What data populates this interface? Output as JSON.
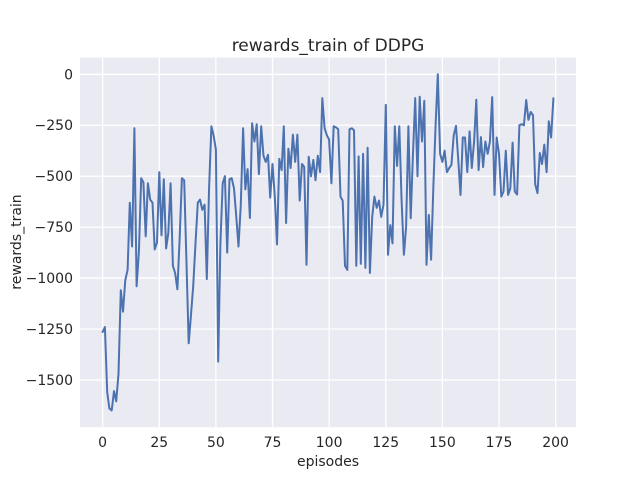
{
  "figure": {
    "background": "#ffffff",
    "axes_background": "#eaeaf2",
    "grid_color": "#ffffff",
    "text_color": "#262626"
  },
  "chart_data": {
    "type": "line",
    "title": "rewards_train of DDPG",
    "xlabel": "episodes",
    "ylabel": "rewards_train",
    "grid": true,
    "legend": false,
    "x_ticks": [
      0,
      25,
      50,
      75,
      100,
      125,
      150,
      175,
      200
    ],
    "y_ticks": [
      0,
      -250,
      -500,
      -750,
      -1000,
      -1250,
      -1500
    ],
    "xlim": [
      -10,
      209
    ],
    "ylim": [
      -1732,
      82
    ],
    "series": [
      {
        "name": "rewards_train",
        "color": "#4c72b0",
        "x_mode": "index",
        "values": [
          -1265,
          -1240,
          -1560,
          -1640,
          -1650,
          -1555,
          -1605,
          -1470,
          -1060,
          -1165,
          -1010,
          -960,
          -630,
          -845,
          -265,
          -1040,
          -870,
          -510,
          -530,
          -795,
          -535,
          -615,
          -630,
          -860,
          -825,
          -480,
          -790,
          -515,
          -855,
          -780,
          -535,
          -940,
          -975,
          -1055,
          -800,
          -510,
          -520,
          -910,
          -1320,
          -1180,
          -1040,
          -830,
          -630,
          -615,
          -665,
          -640,
          -1005,
          -555,
          -255,
          -300,
          -370,
          -1410,
          -830,
          -535,
          -500,
          -875,
          -515,
          -510,
          -560,
          -700,
          -845,
          -640,
          -265,
          -565,
          -465,
          -705,
          -240,
          -330,
          -245,
          -490,
          -255,
          -400,
          -430,
          -395,
          -605,
          -440,
          -600,
          -835,
          -415,
          -470,
          -255,
          -730,
          -365,
          -460,
          -296,
          -430,
          -296,
          -620,
          -440,
          -455,
          -935,
          -405,
          -500,
          -420,
          -520,
          -400,
          -480,
          -117,
          -265,
          -300,
          -320,
          -535,
          -255,
          -260,
          -270,
          -600,
          -620,
          -940,
          -960,
          -270,
          -265,
          -275,
          -940,
          -403,
          -930,
          -390,
          -950,
          -360,
          -975,
          -700,
          -600,
          -655,
          -620,
          -700,
          -640,
          -150,
          -886,
          -740,
          -830,
          -255,
          -450,
          -255,
          -620,
          -886,
          -750,
          -255,
          -706,
          -400,
          -117,
          -500,
          -110,
          -330,
          -130,
          -935,
          -690,
          -910,
          -560,
          -250,
          0,
          -390,
          -430,
          -375,
          -480,
          -460,
          -445,
          -300,
          -253,
          -415,
          -592,
          -310,
          -310,
          -480,
          -280,
          -460,
          -330,
          -125,
          -470,
          -308,
          -455,
          -330,
          -390,
          -330,
          -112,
          -592,
          -310,
          -390,
          -600,
          -575,
          -375,
          -592,
          -560,
          -335,
          -575,
          -590,
          -250,
          -245,
          -250,
          -126,
          -224,
          -185,
          -200,
          -540,
          -583,
          -386,
          -440,
          -345,
          -480,
          -230,
          -310,
          -118
        ]
      }
    ]
  }
}
